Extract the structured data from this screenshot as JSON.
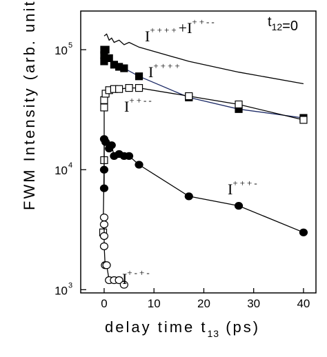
{
  "chart_data": {
    "type": "scatter",
    "ylabel": "FWM Intensity (arb. unit",
    "xlabel": {
      "text": "delay time t",
      "sub": "13",
      "after": " (ps)"
    },
    "xlim": [
      -4.7,
      42.5
    ],
    "xticks": [
      0,
      10,
      20,
      30,
      40
    ],
    "ylim": [
      940,
      210000
    ],
    "log_y": true,
    "yticks": [
      {
        "value": 1000,
        "label": "10",
        "exponent": "3"
      },
      {
        "value": 10000,
        "label": "10",
        "exponent": "4"
      },
      {
        "value": 100000,
        "label": "10",
        "exponent": "5"
      }
    ],
    "series": [
      {
        "marker": "none",
        "color": "#000000",
        "x": [
          0,
          0.5,
          1,
          1.5,
          2,
          3,
          4,
          5,
          7,
          17,
          27,
          40
        ],
        "values": [
          130000,
          135000,
          120000,
          125000,
          115000,
          120000,
          110000,
          115000,
          105000,
          80000,
          65000,
          52000
        ]
      },
      {
        "marker": "square-filled",
        "color": "#1c2a66",
        "x": [
          0,
          0,
          0,
          0.3,
          1,
          2,
          3,
          4,
          7,
          17,
          27,
          40
        ],
        "values": [
          80000,
          90000,
          100000,
          100000,
          85000,
          75000,
          72000,
          70000,
          60000,
          40000,
          32000,
          27000
        ]
      },
      {
        "marker": "square-open",
        "color": "#000000",
        "x": [
          -0.2,
          0,
          0,
          0,
          0.3,
          1,
          2,
          3,
          5,
          7,
          17,
          27,
          40
        ],
        "values": [
          3000,
          12000,
          33000,
          38000,
          43000,
          46000,
          47000,
          47000,
          48000,
          48000,
          41000,
          35000,
          26000
        ]
      },
      {
        "marker": "circle-filled",
        "color": "#000000",
        "x": [
          0,
          0,
          0,
          0.3,
          1,
          1.5,
          2,
          3,
          4,
          5,
          7,
          17,
          27,
          40
        ],
        "values": [
          7000,
          10000,
          18000,
          17000,
          15000,
          16000,
          13000,
          13500,
          13000,
          13000,
          11000,
          6000,
          5000,
          3000
        ]
      },
      {
        "marker": "circle-open",
        "color": "#000000",
        "x": [
          0,
          0,
          0,
          0,
          0.2,
          0.5,
          1,
          2,
          3,
          4
        ],
        "values": [
          4000,
          3500,
          2800,
          2300,
          1600,
          1600,
          1200,
          1200,
          1200,
          1100
        ]
      }
    ],
    "annotations": [
      {
        "segments": [
          {
            "text": "I",
            "sup": "++++"
          },
          {
            "text": "+I",
            "sup": "++--"
          }
        ]
      },
      {
        "segments": [
          {
            "text": "I",
            "sup": "++++"
          }
        ]
      },
      {
        "segments": [
          {
            "text": "I",
            "sup": "++--"
          }
        ]
      },
      {
        "segments": [
          {
            "text": "I",
            "sup": "+++-"
          }
        ]
      },
      {
        "segments": [
          {
            "text": "I",
            "sup": "+-+-"
          }
        ]
      },
      {
        "segments": [
          {
            "text": "t",
            "sub": "12"
          },
          {
            "text": "=0"
          }
        ]
      }
    ]
  }
}
